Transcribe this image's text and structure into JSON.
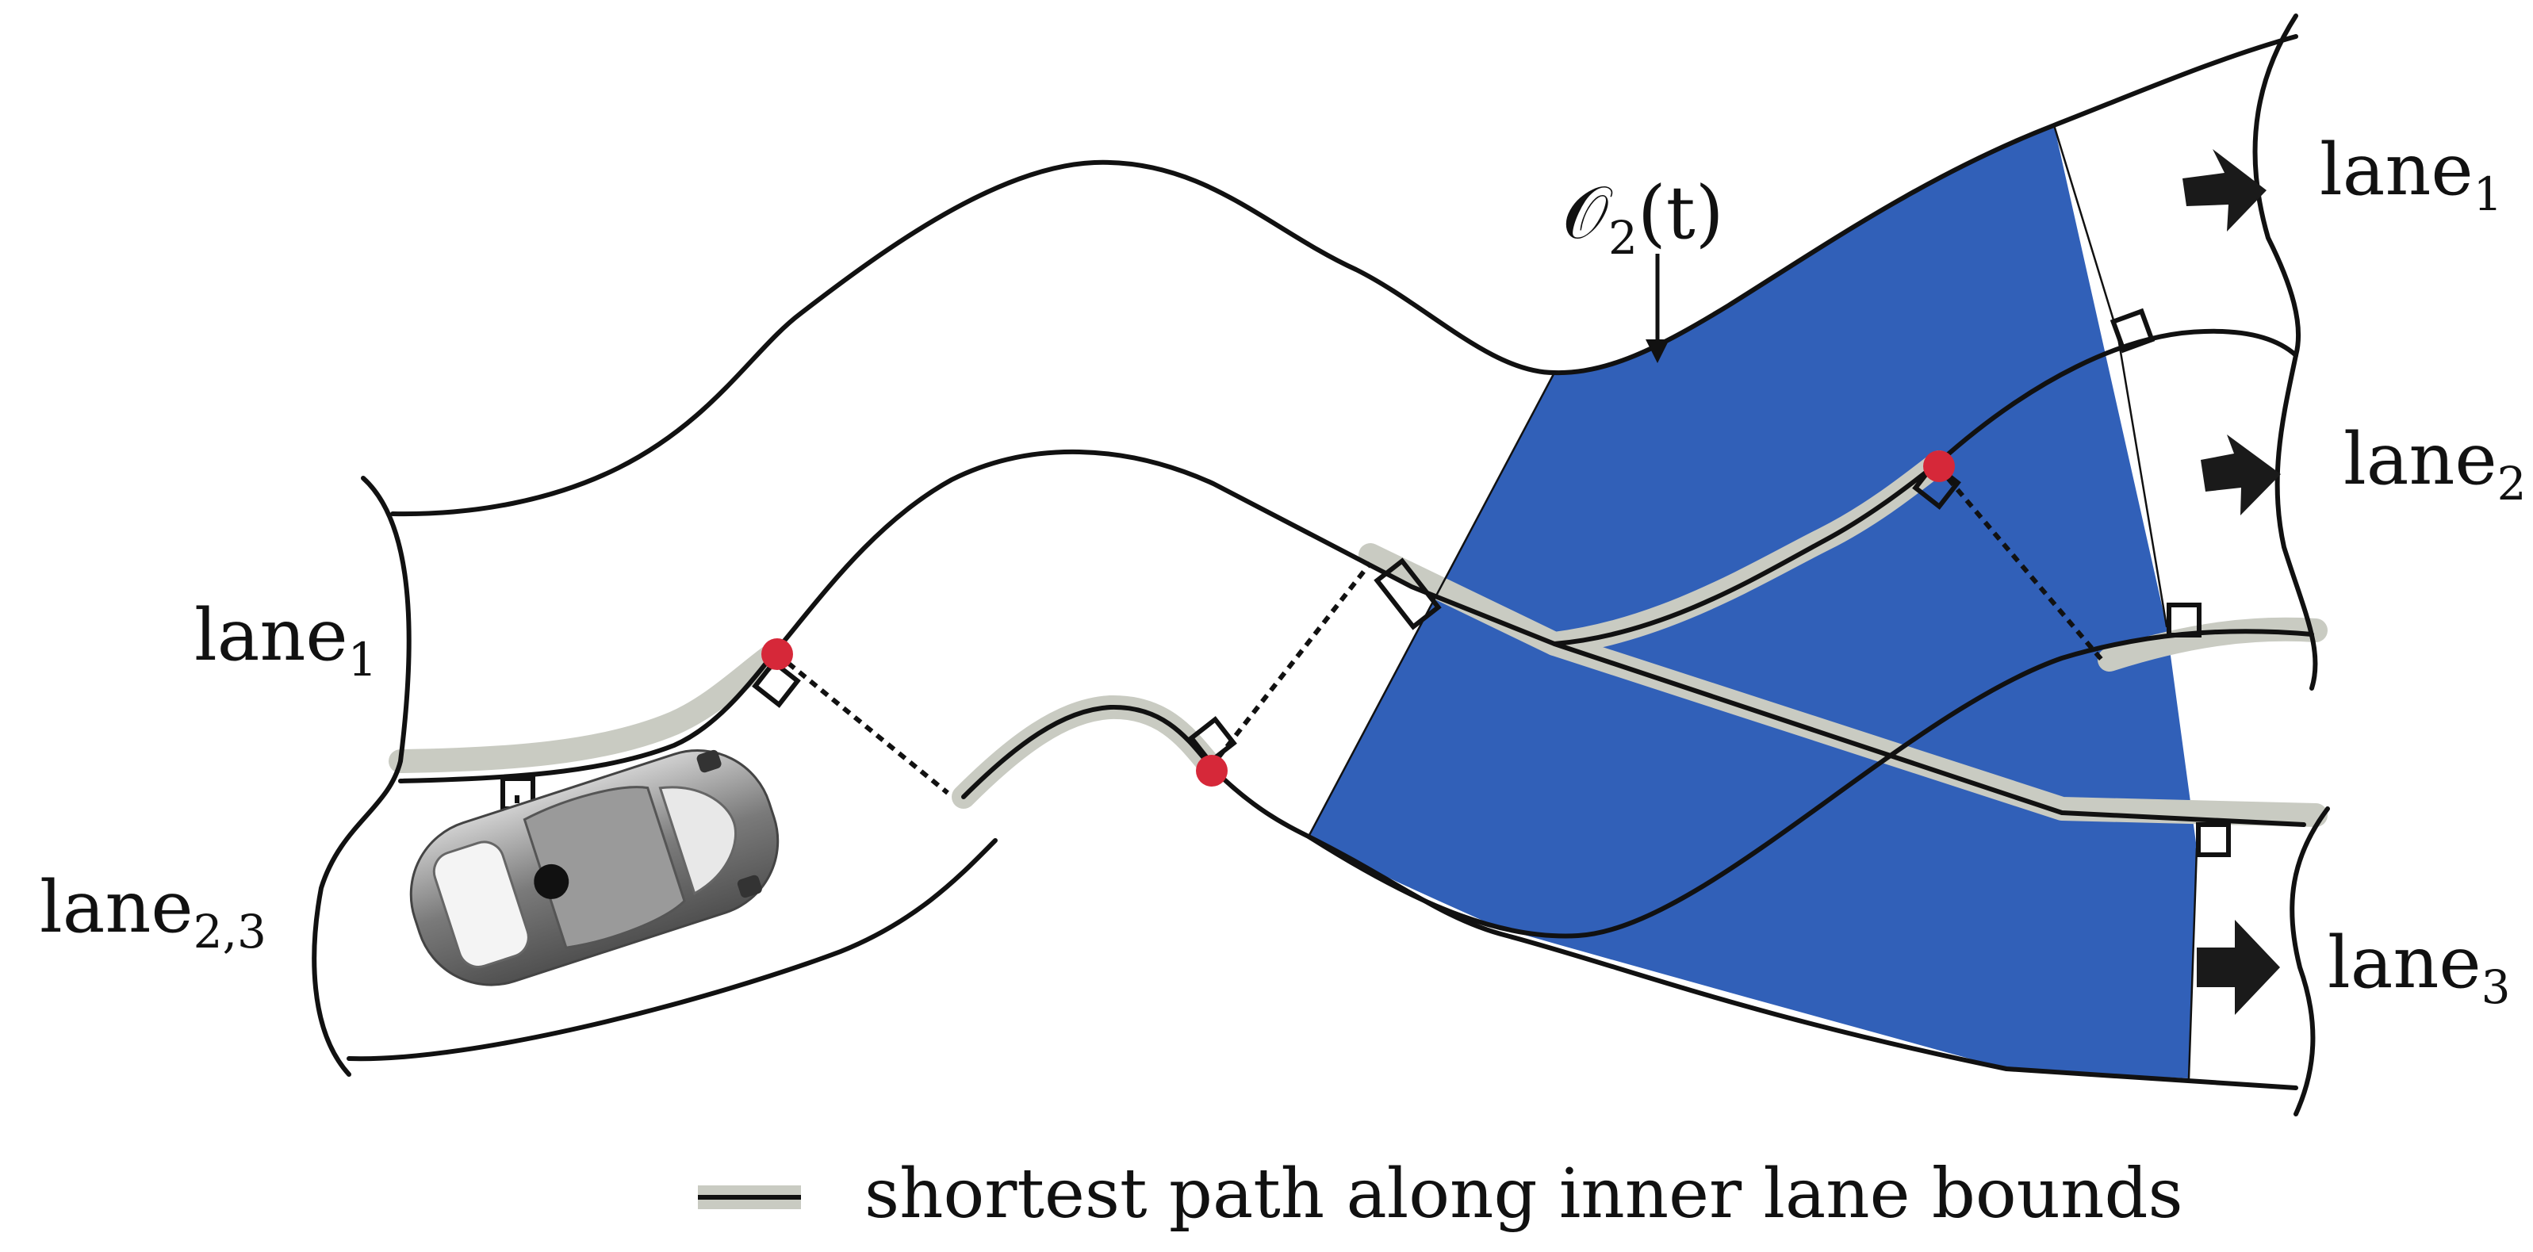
{
  "colors": {
    "region_fill": "#3160b8",
    "outline": "#111111",
    "path_highlight": "#c9cbc2",
    "marker": "#d62839",
    "arrow": "#1a1a1a"
  },
  "labels": {
    "occupancy": {
      "main": "𝒪",
      "sub": "2",
      "rest": "(t)"
    },
    "left_lane1": {
      "main": "lane",
      "sub": "1"
    },
    "left_lane23": {
      "main": "lane",
      "sub": "2,3"
    },
    "right_lane1": {
      "main": "lane",
      "sub": "1"
    },
    "right_lane2": {
      "main": "lane",
      "sub": "2"
    },
    "right_lane3": {
      "main": "lane",
      "sub": "3"
    }
  },
  "legend": {
    "label": "shortest path along inner lane bounds"
  },
  "icons": [
    "car-icon",
    "direction-arrow-icon",
    "right-angle-marker-icon",
    "intersection-point-icon"
  ]
}
